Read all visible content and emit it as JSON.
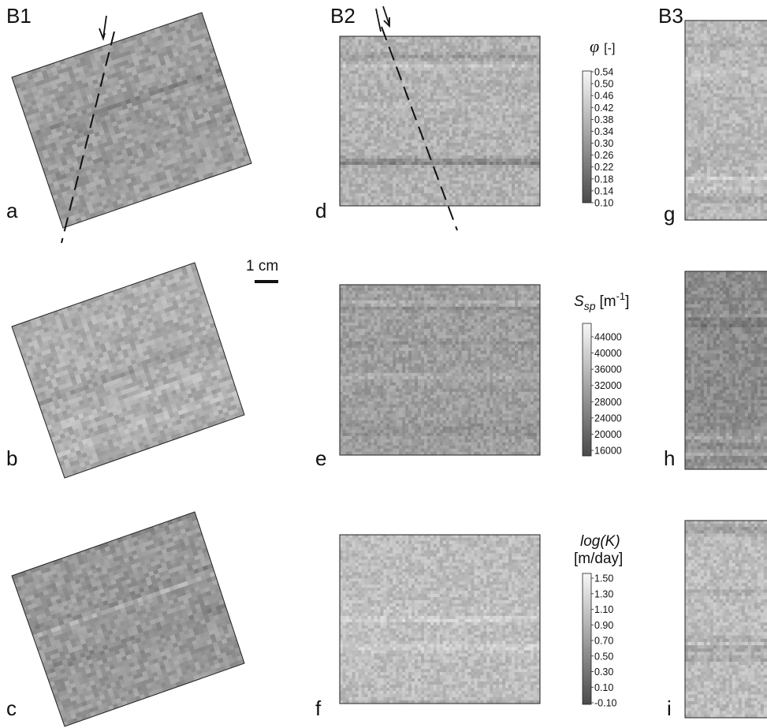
{
  "columns": [
    {
      "id": "B1",
      "label": "B1"
    },
    {
      "id": "B2",
      "label": "B2"
    },
    {
      "id": "B3",
      "label": "B3"
    }
  ],
  "panels": [
    {
      "letter": "a",
      "column": "B1",
      "property": "porosity",
      "base": 0.62
    },
    {
      "letter": "b",
      "column": "B1",
      "property": "specific_surface",
      "base": 0.68
    },
    {
      "letter": "c",
      "column": "B1",
      "property": "permeability",
      "base": 0.6
    },
    {
      "letter": "d",
      "column": "B2",
      "property": "porosity",
      "base": 0.7
    },
    {
      "letter": "e",
      "column": "B2",
      "property": "specific_surface",
      "base": 0.62
    },
    {
      "letter": "f",
      "column": "B2",
      "property": "permeability",
      "base": 0.74
    },
    {
      "letter": "g",
      "column": "B3",
      "property": "porosity",
      "base": 0.72
    },
    {
      "letter": "h",
      "column": "B3",
      "property": "specific_surface",
      "base": 0.55
    },
    {
      "letter": "i",
      "column": "B3",
      "property": "permeability",
      "base": 0.74
    }
  ],
  "colorbars": [
    {
      "id": "porosity",
      "title_symbol": "φ",
      "title_unit": "[-]",
      "ticks": [
        "0.54",
        "0.50",
        "0.46",
        "0.42",
        "0.38",
        "0.34",
        "0.30",
        "0.26",
        "0.22",
        "0.18",
        "0.14",
        "0.10"
      ]
    },
    {
      "id": "specific_surface",
      "title_main": "S",
      "title_sub": "sp",
      "title_unit": "[m",
      "title_sup": "-1",
      "title_close": "]",
      "ticks": [
        "44000",
        "40000",
        "36000",
        "32000",
        "28000",
        "24000",
        "20000",
        "16000"
      ]
    },
    {
      "id": "permeability",
      "title_line1": "log(K)",
      "title_line2": "[m/day]",
      "ticks": [
        "1.50",
        "1.30",
        "1.10",
        "0.90",
        "0.70",
        "0.50",
        "0.30",
        "0.10",
        "-0.10"
      ]
    }
  ],
  "scale_bar": {
    "label": "1 cm"
  },
  "colors": {
    "light": "#f4f4f4",
    "dark": "#4a4a4a",
    "frame": "#222222",
    "line": "#111111"
  }
}
